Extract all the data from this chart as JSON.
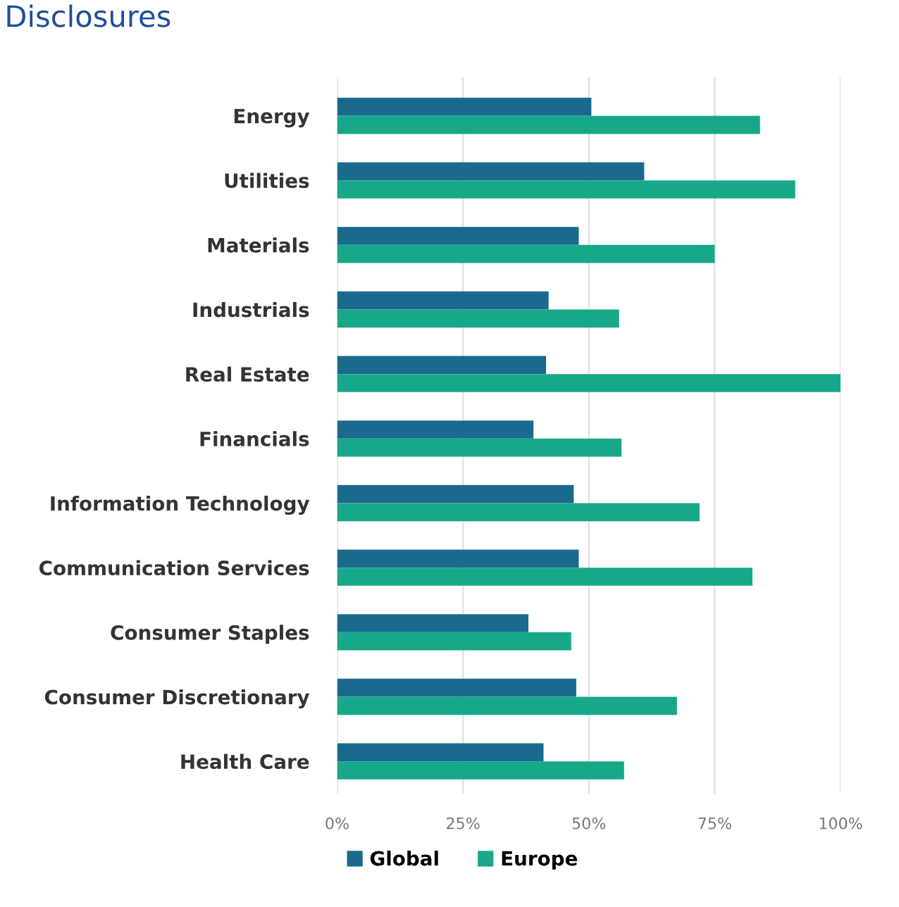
{
  "chart_data": {
    "type": "bar",
    "orientation": "horizontal",
    "title": "Disclosures",
    "categories": [
      "Energy",
      "Utilities",
      "Materials",
      "Industrials",
      "Real Estate",
      "Financials",
      "Information Technology",
      "Communication Services",
      "Consumer Staples",
      "Consumer Discretionary",
      "Health Care"
    ],
    "series": [
      {
        "name": "Global",
        "color": "#1b6a8e",
        "values": [
          50.5,
          61,
          48,
          42,
          41.5,
          39,
          47,
          48,
          38,
          47.5,
          41
        ]
      },
      {
        "name": "Europe",
        "color": "#17a88a",
        "values": [
          84,
          91,
          75,
          56,
          100,
          56.5,
          72,
          82.5,
          46.5,
          67.5,
          57
        ]
      }
    ],
    "xlim": [
      0,
      100
    ],
    "xticks": [
      {
        "value": 0,
        "label": "0%"
      },
      {
        "value": 25,
        "label": "25%"
      },
      {
        "value": 50,
        "label": "50%"
      },
      {
        "value": 75,
        "label": "75%"
      },
      {
        "value": 100,
        "label": "100%"
      }
    ],
    "grid": "x",
    "legend": "bottom"
  }
}
